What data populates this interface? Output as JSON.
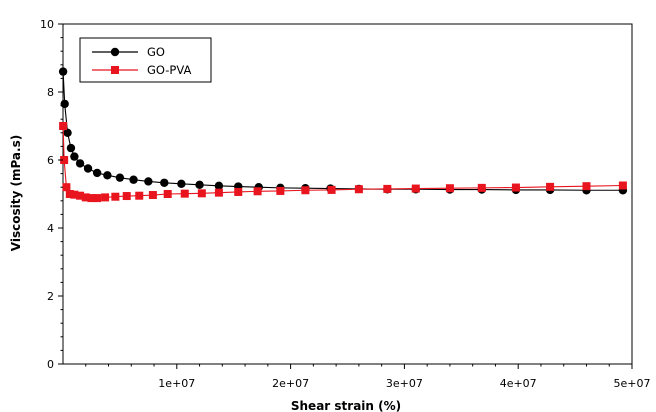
{
  "chart_data": {
    "type": "line",
    "title": "",
    "xlabel": "Shear strain (%)",
    "ylabel": "Viscosity (mPa.s)",
    "xlim": [
      0,
      50000000
    ],
    "ylim": [
      0,
      10
    ],
    "x_ticks": [
      10000000,
      20000000,
      30000000,
      40000000,
      50000000
    ],
    "x_tick_labels": [
      "1e+07",
      "2e+07",
      "3e+07",
      "4e+07",
      "5e+07"
    ],
    "y_ticks": [
      0,
      2,
      4,
      6,
      8,
      10
    ],
    "y_tick_labels": [
      "0",
      "2",
      "4",
      "6",
      "8",
      "10"
    ],
    "grid": false,
    "legend_position": "top-left",
    "series": [
      {
        "name": "GO",
        "color": "#000000",
        "marker": "circle",
        "x": [
          10000,
          150000,
          400000,
          700000,
          1000000,
          1500000,
          2200000,
          3000000,
          3900000,
          5000000,
          6200000,
          7500000,
          8900000,
          10400000,
          12000000,
          13700000,
          15400000,
          17200000,
          19100000,
          21300000,
          23500000,
          26000000,
          28500000,
          31000000,
          34000000,
          36800000,
          39800000,
          42800000,
          46000000,
          49200000
        ],
        "y": [
          8.6,
          7.65,
          6.8,
          6.35,
          6.1,
          5.9,
          5.75,
          5.62,
          5.55,
          5.48,
          5.42,
          5.37,
          5.33,
          5.3,
          5.27,
          5.24,
          5.22,
          5.2,
          5.18,
          5.17,
          5.16,
          5.15,
          5.14,
          5.14,
          5.13,
          5.13,
          5.12,
          5.12,
          5.11,
          5.11
        ]
      },
      {
        "name": "GO-PVA",
        "color": "#e8141e",
        "marker": "square",
        "x": [
          10000,
          100000,
          300000,
          600000,
          1000000,
          1500000,
          2000000,
          2500000,
          3000000,
          3700000,
          4600000,
          5600000,
          6700000,
          7900000,
          9200000,
          10700000,
          12200000,
          13700000,
          15400000,
          17100000,
          19100000,
          21300000,
          23600000,
          26000000,
          28500000,
          31000000,
          34000000,
          36800000,
          39800000,
          42800000,
          46000000,
          49200000
        ],
        "y": [
          7.0,
          6.0,
          5.2,
          5.0,
          4.98,
          4.95,
          4.9,
          4.88,
          4.88,
          4.9,
          4.92,
          4.94,
          4.95,
          4.97,
          5.0,
          5.01,
          5.02,
          5.04,
          5.06,
          5.08,
          5.09,
          5.11,
          5.12,
          5.14,
          5.15,
          5.16,
          5.17,
          5.18,
          5.19,
          5.21,
          5.23,
          5.25
        ]
      }
    ]
  }
}
